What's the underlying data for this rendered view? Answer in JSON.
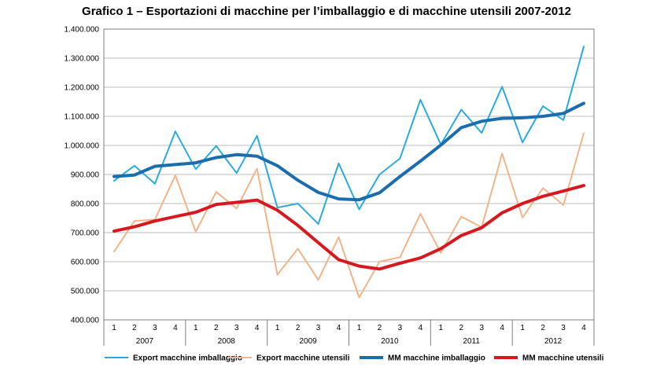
{
  "chart_data": {
    "type": "line",
    "title": "Grafico 1 – Esportazioni di macchine per l’imballaggio e di macchine utensili 2007-2012",
    "xlabel": "",
    "ylabel": "",
    "ylim": [
      400000,
      1400000
    ],
    "y_ticks": [
      400000,
      500000,
      600000,
      700000,
      800000,
      900000,
      1000000,
      1100000,
      1200000,
      1300000,
      1400000
    ],
    "y_tick_labels": [
      "400.000",
      "500.000",
      "600.000",
      "700.000",
      "800.000",
      "900.000",
      "1.000.000",
      "1.100.000",
      "1.200.000",
      "1.300.000",
      "1.400.000"
    ],
    "quarters": [
      "1",
      "2",
      "3",
      "4",
      "1",
      "2",
      "3",
      "4",
      "1",
      "2",
      "3",
      "4",
      "1",
      "2",
      "3",
      "4",
      "1",
      "2",
      "3",
      "4",
      "1",
      "2",
      "3",
      "4"
    ],
    "years": [
      "2007",
      "2008",
      "2009",
      "2010",
      "2011",
      "2012"
    ],
    "grid": true,
    "legend_position": "bottom",
    "series": [
      {
        "name": "Export macchine imballaggio",
        "color": "#29abe2",
        "width": 2,
        "values": [
          878000,
          930000,
          868000,
          1048000,
          918000,
          998000,
          905000,
          1033000,
          786000,
          800000,
          730000,
          938000,
          780000,
          900000,
          955000,
          1157000,
          1003000,
          1123000,
          1043000,
          1202000,
          1010000,
          1135000,
          1087000,
          1340000
        ]
      },
      {
        "name": "Export macchine utensili",
        "color": "#f2b48a",
        "width": 2,
        "values": [
          635000,
          740000,
          745000,
          897000,
          703000,
          840000,
          783000,
          920000,
          555000,
          645000,
          537000,
          685000,
          477000,
          600000,
          615000,
          765000,
          630000,
          755000,
          718000,
          972000,
          752000,
          853000,
          795000,
          1042000
        ]
      },
      {
        "name": "MM macchine imballaggio",
        "color": "#1b6db0",
        "width": 4,
        "values": [
          893000,
          898000,
          928000,
          934000,
          940000,
          958000,
          968000,
          963000,
          930000,
          880000,
          838000,
          816000,
          813000,
          837000,
          893000,
          946000,
          1001000,
          1061000,
          1083000,
          1093000,
          1095000,
          1100000,
          1110000,
          1145000
        ]
      },
      {
        "name": "MM macchine utensili",
        "color": "#d7191f",
        "width": 4,
        "values": [
          705000,
          720000,
          740000,
          755000,
          770000,
          797000,
          804000,
          812000,
          777000,
          725000,
          665000,
          607000,
          585000,
          575000,
          595000,
          613000,
          645000,
          690000,
          717000,
          768000,
          800000,
          825000,
          843000,
          862000
        ]
      }
    ]
  }
}
